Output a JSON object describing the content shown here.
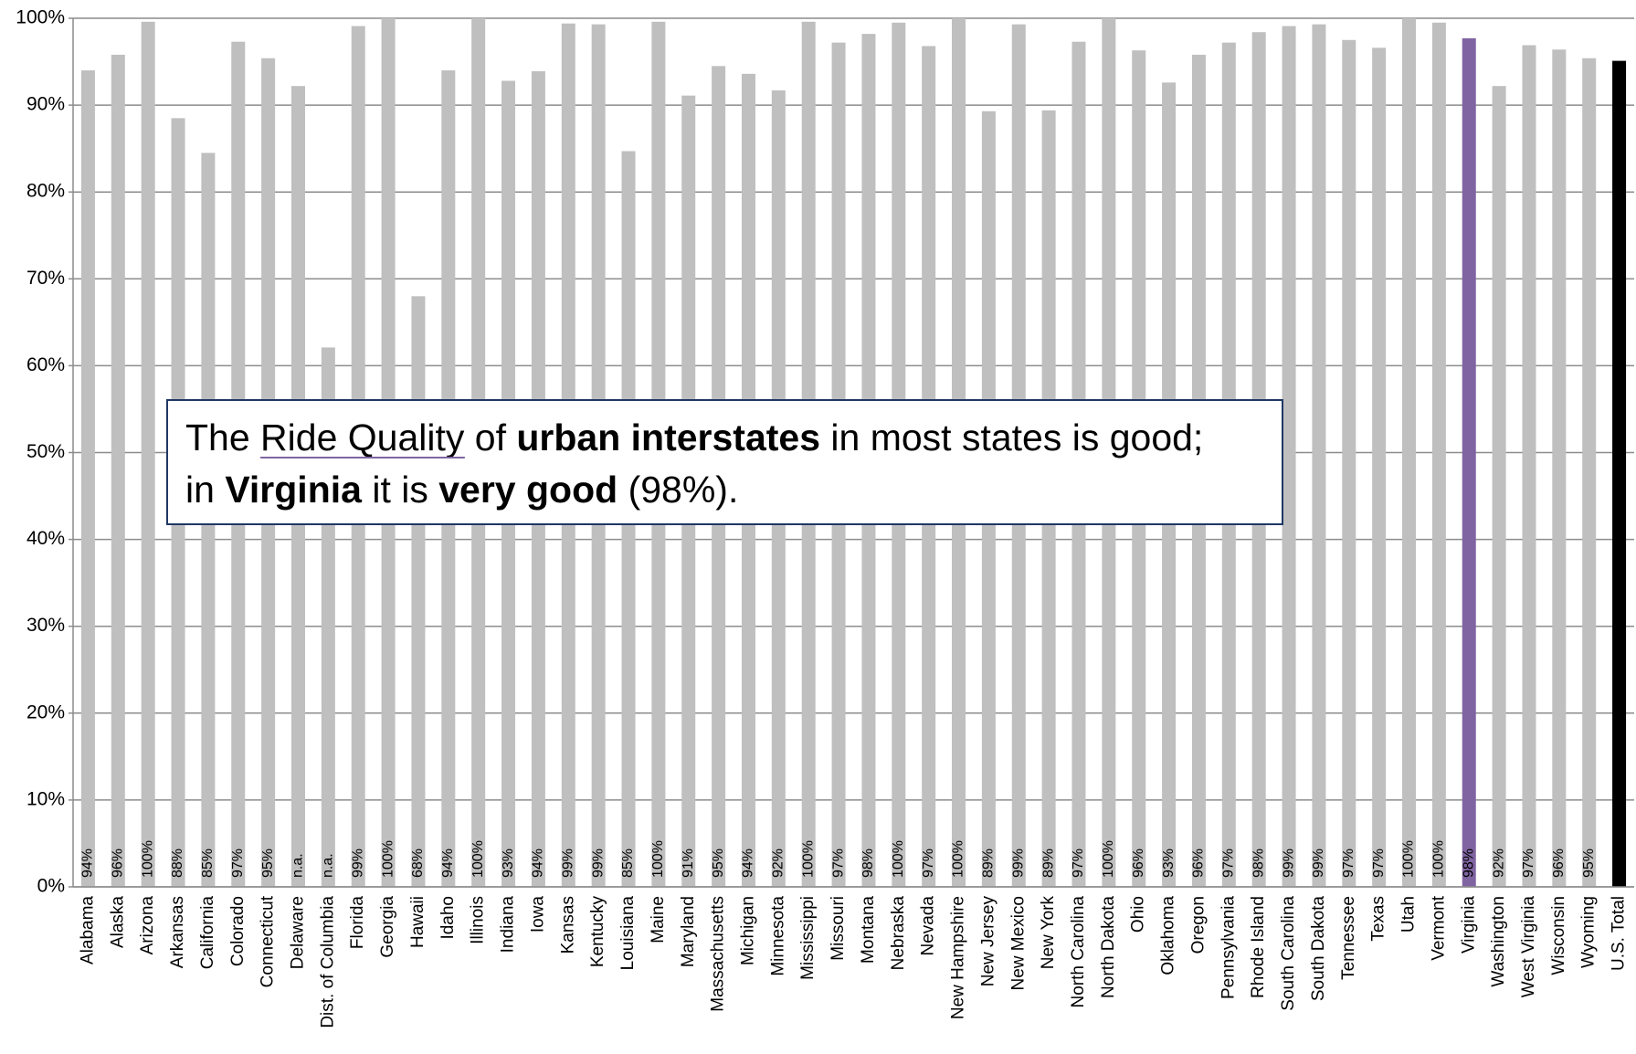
{
  "chart_data": {
    "type": "bar",
    "categories": [
      "Alabama",
      "Alaska",
      "Arizona",
      "Arkansas",
      "California",
      "Colorado",
      "Connecticut",
      "Delaware",
      "Dist. of Columbia",
      "Florida",
      "Georgia",
      "Hawaii",
      "Idaho",
      "Illinois",
      "Indiana",
      "Iowa",
      "Kansas",
      "Kentucky",
      "Louisiana",
      "Maine",
      "Maryland",
      "Massachusetts",
      "Michigan",
      "Minnesota",
      "Mississippi",
      "Missouri",
      "Montana",
      "Nebraska",
      "Nevada",
      "New Hampshire",
      "New Jersey",
      "New Mexico",
      "New York",
      "North Carolina",
      "North Dakota",
      "Ohio",
      "Oklahoma",
      "Oregon",
      "Pennsylvania",
      "Rhode Island",
      "South Carolina",
      "South Dakota",
      "Tennessee",
      "Texas",
      "Utah",
      "Vermont",
      "Virginia",
      "Washington",
      "West Virginia",
      "Wisconsin",
      "Wyoming",
      "U.S. Total"
    ],
    "values": [
      94.0,
      95.8,
      99.6,
      88.5,
      84.5,
      97.3,
      95.4,
      92.2,
      62.1,
      99.1,
      100,
      68.0,
      94.0,
      100,
      92.8,
      93.9,
      99.4,
      99.3,
      84.7,
      99.6,
      91.1,
      94.5,
      93.6,
      91.7,
      99.6,
      97.2,
      98.2,
      99.5,
      96.8,
      100,
      89.3,
      99.3,
      89.4,
      97.3,
      100,
      96.3,
      92.6,
      95.8,
      97.2,
      98.4,
      99.1,
      99.3,
      97.5,
      96.6,
      100,
      99.5,
      97.7,
      92.2,
      96.9,
      96.4,
      95.4,
      95.1
    ],
    "value_labels": [
      "94%",
      "96%",
      "100%",
      "88%",
      "85%",
      "97%",
      "95%",
      "n.a.",
      "n.a.",
      "99%",
      "100%",
      "68%",
      "94%",
      "100%",
      "93%",
      "94%",
      "99%",
      "99%",
      "85%",
      "100%",
      "91%",
      "95%",
      "94%",
      "92%",
      "100%",
      "97%",
      "98%",
      "100%",
      "97%",
      "100%",
      "89%",
      "99%",
      "89%",
      "97%",
      "100%",
      "96%",
      "93%",
      "96%",
      "97%",
      "98%",
      "99%",
      "99%",
      "97%",
      "97%",
      "100%",
      "100%",
      "98%",
      "92%",
      "97%",
      "96%",
      "95%",
      "95%"
    ],
    "colors": [
      "#bfbfbf",
      "#bfbfbf",
      "#bfbfbf",
      "#bfbfbf",
      "#bfbfbf",
      "#bfbfbf",
      "#bfbfbf",
      "#bfbfbf",
      "#bfbfbf",
      "#bfbfbf",
      "#bfbfbf",
      "#bfbfbf",
      "#bfbfbf",
      "#bfbfbf",
      "#bfbfbf",
      "#bfbfbf",
      "#bfbfbf",
      "#bfbfbf",
      "#bfbfbf",
      "#bfbfbf",
      "#bfbfbf",
      "#bfbfbf",
      "#bfbfbf",
      "#bfbfbf",
      "#bfbfbf",
      "#bfbfbf",
      "#bfbfbf",
      "#bfbfbf",
      "#bfbfbf",
      "#bfbfbf",
      "#bfbfbf",
      "#bfbfbf",
      "#bfbfbf",
      "#bfbfbf",
      "#bfbfbf",
      "#bfbfbf",
      "#bfbfbf",
      "#bfbfbf",
      "#bfbfbf",
      "#bfbfbf",
      "#bfbfbf",
      "#bfbfbf",
      "#bfbfbf",
      "#bfbfbf",
      "#bfbfbf",
      "#bfbfbf",
      "#8064a2",
      "#bfbfbf",
      "#bfbfbf",
      "#bfbfbf",
      "#bfbfbf",
      "#000000"
    ],
    "ylim": [
      0,
      100
    ],
    "yticks": [
      {
        "value": 0,
        "label": "0%"
      },
      {
        "value": 10,
        "label": "10%"
      },
      {
        "value": 20,
        "label": "20%"
      },
      {
        "value": 30,
        "label": "30%"
      },
      {
        "value": 40,
        "label": "40%"
      },
      {
        "value": 50,
        "label": "50%"
      },
      {
        "value": 60,
        "label": "60%"
      },
      {
        "value": 70,
        "label": "70%"
      },
      {
        "value": 80,
        "label": "80%"
      },
      {
        "value": 90,
        "label": "90%"
      },
      {
        "value": 100,
        "label": "100%"
      }
    ],
    "grid": true,
    "annotation": [
      [
        "The ",
        "Ride Quality",
        " of ",
        "urban interstates",
        " in most states is good;"
      ],
      [
        "in ",
        "Virginia",
        " it is ",
        "very good",
        " (98%)."
      ]
    ]
  }
}
